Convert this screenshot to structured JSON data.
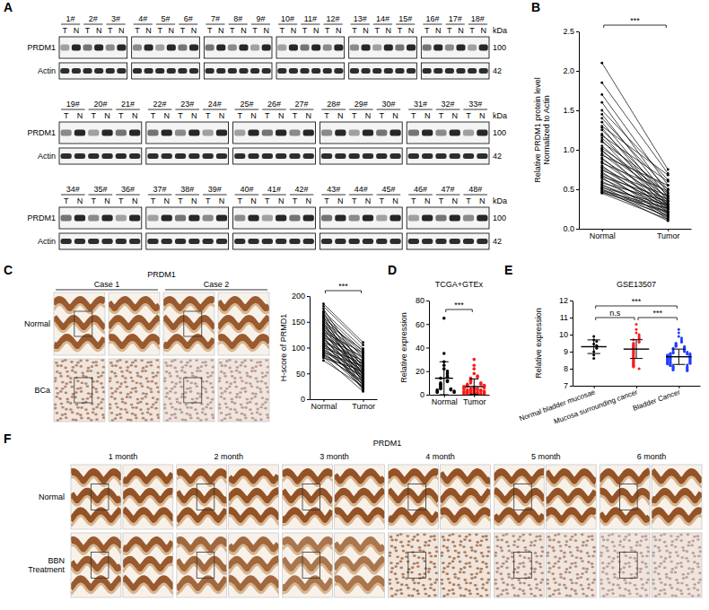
{
  "figure": {
    "panel_letters": [
      "A",
      "B",
      "C",
      "D",
      "E",
      "F"
    ],
    "blot": {
      "kda": "kDa",
      "lanes": [
        "T",
        "N"
      ],
      "rows": [
        {
          "label": "PRDM1",
          "kda": "100"
        },
        {
          "label": "Actin",
          "kda": "42"
        }
      ],
      "sample_rows": [
        [
          [
            "1#",
            "2#",
            "3#"
          ],
          [
            "4#",
            "5#",
            "6#"
          ],
          [
            "7#",
            "8#",
            "9#"
          ],
          [
            "10#",
            "11#",
            "12#"
          ],
          [
            "13#",
            "14#",
            "15#"
          ],
          [
            "16#",
            "17#",
            "18#"
          ]
        ],
        [
          [
            "19#",
            "20#",
            "21#"
          ],
          [
            "22#",
            "23#",
            "24#"
          ],
          [
            "25#",
            "26#",
            "27#"
          ],
          [
            "28#",
            "29#",
            "30#"
          ],
          [
            "31#",
            "32#",
            "33#"
          ]
        ],
        [
          [
            "34#",
            "35#",
            "36#"
          ],
          [
            "37#",
            "38#",
            "39#"
          ],
          [
            "40#",
            "41#",
            "42#"
          ],
          [
            "43#",
            "44#",
            "45#"
          ],
          [
            "46#",
            "47#",
            "48#"
          ]
        ]
      ]
    },
    "ihc_c": {
      "title": "PRDM1",
      "cases": [
        "Case 1",
        "Case 2"
      ],
      "rows": [
        "Normal",
        "BCa"
      ]
    },
    "ihc_f": {
      "title": "PRDM1",
      "columns": [
        "1 month",
        "2 month",
        "3 month",
        "4 month",
        "5 month",
        "6 month"
      ],
      "rows": [
        "Normal",
        "BBN Treatment"
      ]
    }
  },
  "chart_data": [
    {
      "type": "line",
      "categories": [
        "Normal",
        "Tumor"
      ],
      "ylabel": "Relative PRDM1 protein level Normalized to Actin",
      "ylim": [
        0,
        2.5
      ],
      "yticks": [
        {
          "value": 0,
          "label": "0.0"
        },
        0.5,
        {
          "value": 1,
          "label": "1.0"
        },
        1.5,
        {
          "value": 2,
          "label": "2.0"
        },
        2.5
      ],
      "color": "#000000",
      "marker": "circle",
      "annotations": [
        {
          "text": "***",
          "between": [
            0,
            1
          ]
        }
      ],
      "series": [
        {
          "values": [
            2.1,
            0.75
          ]
        },
        {
          "values": [
            1.85,
            0.7
          ]
        },
        {
          "values": [
            1.7,
            0.55
          ]
        },
        {
          "values": [
            1.6,
            0.45
          ]
        },
        {
          "values": [
            1.5,
            0.62
          ]
        },
        {
          "values": [
            1.45,
            0.4
          ]
        },
        {
          "values": [
            1.4,
            0.5
          ]
        },
        {
          "values": [
            1.35,
            0.35
          ]
        },
        {
          "values": [
            1.3,
            0.68
          ]
        },
        {
          "values": [
            1.28,
            0.3
          ]
        },
        {
          "values": [
            1.25,
            0.42
          ]
        },
        {
          "values": [
            1.2,
            0.28
          ]
        },
        {
          "values": [
            1.18,
            0.6
          ]
        },
        {
          "values": [
            1.15,
            0.38
          ]
        },
        {
          "values": [
            1.12,
            0.25
          ]
        },
        {
          "values": [
            1.1,
            0.5
          ]
        },
        {
          "values": [
            1.05,
            0.33
          ]
        },
        {
          "values": [
            1.02,
            0.45
          ]
        },
        {
          "values": [
            1,
            0.22
          ]
        },
        {
          "values": [
            0.98,
            0.4
          ]
        },
        {
          "values": [
            0.95,
            0.3
          ]
        },
        {
          "values": [
            0.93,
            0.55
          ]
        },
        {
          "values": [
            0.9,
            0.2
          ]
        },
        {
          "values": [
            0.88,
            0.36
          ]
        },
        {
          "values": [
            0.85,
            0.27
          ]
        },
        {
          "values": [
            0.83,
            0.48
          ]
        },
        {
          "values": [
            0.8,
            0.18
          ]
        },
        {
          "values": [
            0.78,
            0.32
          ]
        },
        {
          "values": [
            0.76,
            0.25
          ]
        },
        {
          "values": [
            0.74,
            0.42
          ]
        },
        {
          "values": [
            0.72,
            0.15
          ]
        },
        {
          "values": [
            0.7,
            0.3
          ]
        },
        {
          "values": [
            0.68,
            0.22
          ]
        },
        {
          "values": [
            0.66,
            0.38
          ]
        },
        {
          "values": [
            0.65,
            0.12
          ]
        },
        {
          "values": [
            0.63,
            0.28
          ]
        },
        {
          "values": [
            0.6,
            0.2
          ]
        },
        {
          "values": [
            0.58,
            0.35
          ]
        },
        {
          "values": [
            0.56,
            0.17
          ]
        },
        {
          "values": [
            0.55,
            0.25
          ]
        },
        {
          "values": [
            0.53,
            0.14
          ]
        },
        {
          "values": [
            0.52,
            0.3
          ]
        },
        {
          "values": [
            0.5,
            0.2
          ]
        },
        {
          "values": [
            0.5,
            0.1
          ]
        },
        {
          "values": [
            0.48,
            0.26
          ]
        },
        {
          "values": [
            0.47,
            0.16
          ]
        },
        {
          "values": [
            0.46,
            0.22
          ]
        },
        {
          "values": [
            0.45,
            0.12
          ]
        }
      ]
    },
    {
      "type": "line",
      "categories": [
        "Normal",
        "Tumor"
      ],
      "ylabel": "H-score of PRMD1",
      "ylim": [
        0,
        200
      ],
      "yticks": [
        0,
        50,
        100,
        150,
        200
      ],
      "color": "#000000",
      "marker": "circle",
      "annotations": [
        {
          "text": "***",
          "between": [
            0,
            1
          ]
        }
      ],
      "series": [
        {
          "values": [
            185,
            110
          ]
        },
        {
          "values": [
            180,
            105
          ]
        },
        {
          "values": [
            175,
            60
          ]
        },
        {
          "values": [
            170,
            98
          ]
        },
        {
          "values": [
            168,
            45
          ]
        },
        {
          "values": [
            165,
            92
          ]
        },
        {
          "values": [
            162,
            80
          ]
        },
        {
          "values": [
            160,
            30
          ]
        },
        {
          "values": [
            158,
            88
          ]
        },
        {
          "values": [
            155,
            70
          ]
        },
        {
          "values": [
            152,
            55
          ]
        },
        {
          "values": [
            150,
            95
          ]
        },
        {
          "values": [
            148,
            40
          ]
        },
        {
          "values": [
            146,
            85
          ]
        },
        {
          "values": [
            144,
            65
          ]
        },
        {
          "values": [
            142,
            50
          ]
        },
        {
          "values": [
            140,
            78
          ]
        },
        {
          "values": [
            138,
            35
          ]
        },
        {
          "values": [
            136,
            72
          ]
        },
        {
          "values": [
            134,
            60
          ]
        },
        {
          "values": [
            132,
            25
          ]
        },
        {
          "values": [
            130,
            90
          ]
        },
        {
          "values": [
            128,
            48
          ]
        },
        {
          "values": [
            126,
            68
          ]
        },
        {
          "values": [
            124,
            58
          ]
        },
        {
          "values": [
            122,
            20
          ]
        },
        {
          "values": [
            120,
            82
          ]
        },
        {
          "values": [
            118,
            42
          ]
        },
        {
          "values": [
            116,
            62
          ]
        },
        {
          "values": [
            114,
            52
          ]
        },
        {
          "values": [
            112,
            18
          ]
        },
        {
          "values": [
            110,
            75
          ]
        },
        {
          "values": [
            108,
            38
          ]
        },
        {
          "values": [
            106,
            56
          ]
        },
        {
          "values": [
            104,
            46
          ]
        },
        {
          "values": [
            102,
            28
          ]
        },
        {
          "values": [
            100,
            70
          ]
        },
        {
          "values": [
            98,
            33
          ]
        },
        {
          "values": [
            96,
            50
          ]
        },
        {
          "values": [
            94,
            40
          ]
        },
        {
          "values": [
            92,
            22
          ]
        },
        {
          "values": [
            90,
            64
          ]
        },
        {
          "values": [
            88,
            30
          ]
        },
        {
          "values": [
            86,
            45
          ]
        },
        {
          "values": [
            84,
            35
          ]
        },
        {
          "values": [
            82,
            15
          ]
        },
        {
          "values": [
            80,
            55
          ]
        },
        {
          "values": [
            75,
            25
          ]
        }
      ]
    },
    {
      "type": "scatter",
      "title": "TCGA+GTEx",
      "categories": [
        "Normal",
        "Tumor"
      ],
      "ylabel": "Relative expression",
      "ylim": [
        0,
        80
      ],
      "yticks": [
        0,
        20,
        40,
        60,
        80
      ],
      "colors": [
        "#000000",
        "#ff1a1a"
      ],
      "values": [
        [
          65,
          35,
          28,
          25,
          22,
          20,
          18,
          16,
          15,
          14,
          12,
          11,
          10,
          9,
          8,
          7,
          6,
          5,
          5,
          4,
          4,
          3,
          3,
          2,
          2
        ],
        [
          30,
          25,
          22,
          18,
          16,
          15,
          14,
          13,
          12,
          11,
          10,
          10,
          9,
          9,
          8,
          8,
          7,
          7,
          7,
          6,
          6,
          6,
          5,
          5,
          5,
          5,
          4,
          4,
          4,
          4,
          4,
          3,
          3,
          3,
          3,
          3,
          3,
          2,
          2,
          2,
          2,
          2,
          2,
          1,
          1,
          1,
          1,
          1,
          1,
          1
        ]
      ],
      "mean": [
        14,
        6.9
      ],
      "error": [
        14,
        6.5
      ],
      "annotations": [
        {
          "text": "***",
          "between": [
            0,
            1
          ]
        }
      ]
    },
    {
      "type": "scatter",
      "title": "GSE13507",
      "categories": [
        "Normal bladder mucosae",
        "Mucosa surrounding cancer",
        "Bladder Cancer"
      ],
      "ylabel": "Relative expression",
      "ylim": [
        7,
        12
      ],
      "yticks": [
        7,
        8,
        9,
        10,
        11,
        12
      ],
      "colors": [
        "#000000",
        "#ff1a1a",
        "#1f3fff"
      ],
      "values": [
        [
          9.9,
          9.7,
          9.6,
          9.45,
          9.35,
          9.3,
          9.2,
          9.0,
          8.8,
          8.6
        ],
        [
          10.6,
          10.3,
          10.1,
          10.0,
          9.9,
          9.8,
          9.75,
          9.7,
          9.6,
          9.55,
          9.5,
          9.45,
          9.4,
          9.35,
          9.3,
          9.25,
          9.2,
          9.15,
          9.1,
          9.05,
          9.0,
          8.95,
          8.9,
          8.85,
          8.8,
          8.75,
          8.7,
          8.65,
          8.6,
          8.55,
          8.5,
          8.45,
          8.4,
          8.35,
          8.3,
          8.25,
          8.2,
          8.15,
          8.1,
          8.0
        ],
        [
          10.3,
          10.1,
          9.9,
          9.8,
          9.7,
          9.6,
          9.55,
          9.5,
          9.45,
          9.4,
          9.35,
          9.3,
          9.3,
          9.25,
          9.2,
          9.2,
          9.15,
          9.1,
          9.1,
          9.05,
          9.0,
          9.0,
          8.98,
          8.95,
          8.92,
          8.9,
          8.9,
          8.88,
          8.85,
          8.85,
          8.82,
          8.8,
          8.8,
          8.78,
          8.75,
          8.75,
          8.72,
          8.7,
          8.7,
          8.68,
          8.65,
          8.65,
          8.62,
          8.6,
          8.6,
          8.58,
          8.55,
          8.55,
          8.52,
          8.5,
          8.5,
          8.48,
          8.45,
          8.45,
          8.42,
          8.4,
          8.4,
          8.38,
          8.35,
          8.35,
          8.32,
          8.3,
          8.3,
          8.28,
          8.25,
          8.22,
          8.2,
          8.18,
          8.15,
          8.12,
          8.1,
          8.08,
          8.05,
          8.02,
          8.0,
          7.98,
          7.95,
          7.92,
          7.9,
          7.88
        ]
      ],
      "mean": [
        9.29,
        9.15,
        8.7
      ],
      "error": [
        0.4,
        0.55,
        0.45
      ],
      "annotations": [
        {
          "text": "n.s",
          "between": [
            0,
            1
          ]
        },
        {
          "text": "***",
          "between": [
            1,
            2
          ]
        },
        {
          "text": "***",
          "between": [
            0,
            2
          ]
        }
      ]
    }
  ]
}
